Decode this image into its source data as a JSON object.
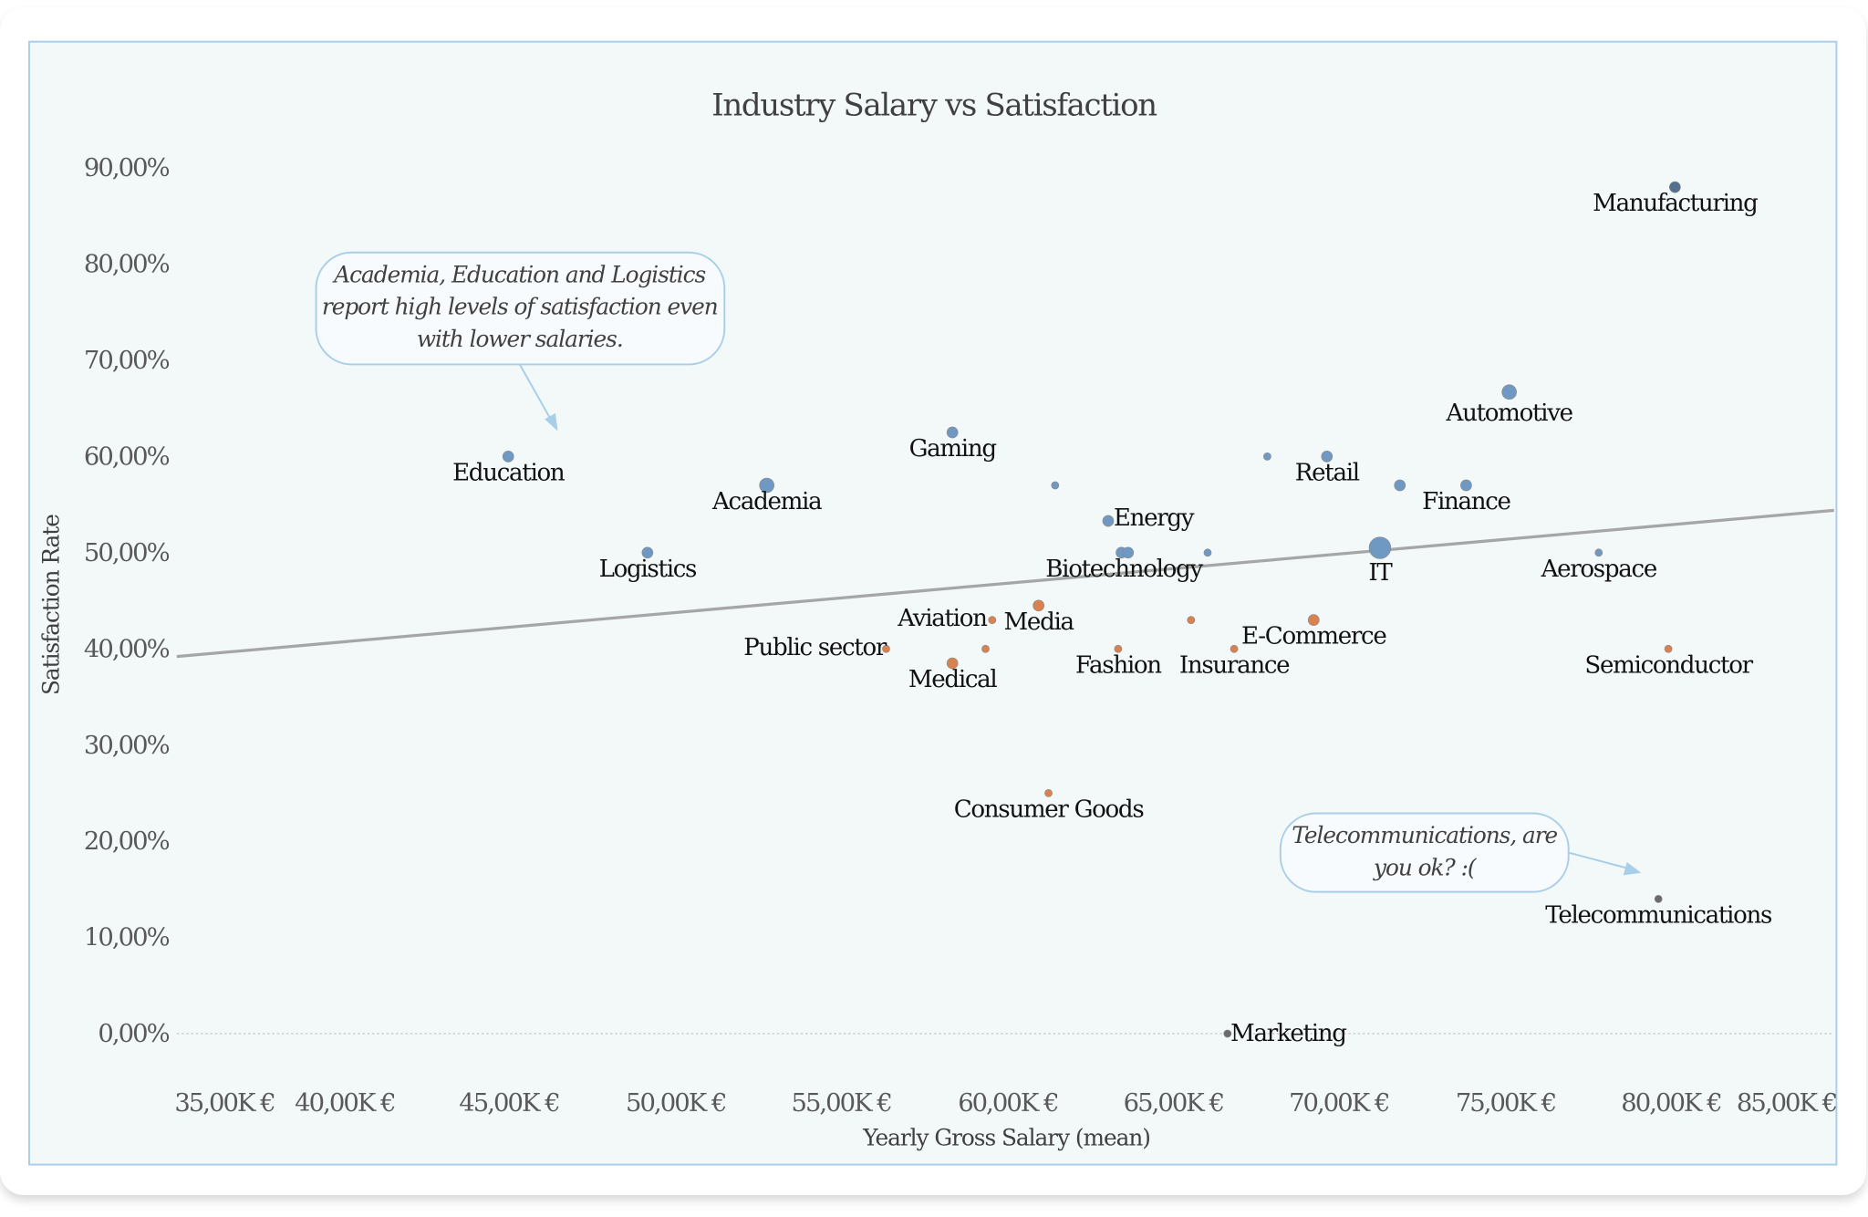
{
  "chart_data": {
    "type": "scatter",
    "title": "Industry Salary vs Satisfaction",
    "xlabel": "Yearly Gross Salary (mean)",
    "ylabel": "Satisfaction Rate",
    "xlim": [
      35000,
      85000
    ],
    "ylim": [
      0,
      0.9
    ],
    "x_ticks": [
      "35,00K €",
      "40,00K €",
      "45,00K €",
      "50,00K €",
      "55,00K €",
      "60,00K €",
      "65,00K €",
      "70,00K €",
      "75,00K €",
      "80,00K €",
      "85,00K €"
    ],
    "y_ticks": [
      "0,00%",
      "10,00%",
      "20,00%",
      "30,00%",
      "40,00%",
      "50,00%",
      "60,00%",
      "70,00%",
      "80,00%",
      "90,00%"
    ],
    "grid": false,
    "colors": {
      "high": "#6f98c3",
      "low": "#d9824f",
      "dark": "#6b6b6b",
      "top": "#52708f",
      "trendline": "#a6a6a6",
      "plot_bg": "#f3f8f9",
      "plot_border": "#a9cfe8"
    },
    "points": [
      {
        "label": "Education",
        "x": 45000,
        "y": 0.6,
        "size": 2,
        "color": "high"
      },
      {
        "label": "Academia",
        "x": 52800,
        "y": 0.57,
        "size": 3,
        "color": "high"
      },
      {
        "label": "Logistics",
        "x": 49200,
        "y": 0.5,
        "size": 2,
        "color": "high"
      },
      {
        "label": "Gaming",
        "x": 58400,
        "y": 0.625,
        "size": 2,
        "color": "high"
      },
      {
        "label": "",
        "x": 61500,
        "y": 0.57,
        "size": 1,
        "color": "high"
      },
      {
        "label": "Energy",
        "x": 63100,
        "y": 0.533,
        "size": 2,
        "color": "high"
      },
      {
        "label": "Biotechnology",
        "x": 63500,
        "y": 0.5,
        "size": 2,
        "color": "high"
      },
      {
        "label": "",
        "x": 63700,
        "y": 0.5,
        "size": 2,
        "color": "high"
      },
      {
        "label": "",
        "x": 66100,
        "y": 0.5,
        "size": 1,
        "color": "high"
      },
      {
        "label": "",
        "x": 67900,
        "y": 0.6,
        "size": 1,
        "color": "high"
      },
      {
        "label": "Retail",
        "x": 69700,
        "y": 0.6,
        "size": 2,
        "color": "high"
      },
      {
        "label": "",
        "x": 71900,
        "y": 0.57,
        "size": 2,
        "color": "high"
      },
      {
        "label": "Finance",
        "x": 73900,
        "y": 0.57,
        "size": 2,
        "color": "high"
      },
      {
        "label": "Automotive",
        "x": 75200,
        "y": 0.667,
        "size": 3,
        "color": "high"
      },
      {
        "label": "IT",
        "x": 71300,
        "y": 0.505,
        "size": 5,
        "color": "high"
      },
      {
        "label": "Aerospace",
        "x": 77900,
        "y": 0.5,
        "size": 1,
        "color": "high"
      },
      {
        "label": "Manufacturing",
        "x": 80200,
        "y": 0.88,
        "size": 2,
        "color": "top"
      },
      {
        "label": "Semiconductor",
        "x": 80000,
        "y": 0.4,
        "size": 1,
        "color": "low"
      },
      {
        "label": "Telecommunications",
        "x": 79700,
        "y": 0.14,
        "size": 1,
        "color": "dark"
      },
      {
        "label": "Marketing",
        "x": 66700,
        "y": 0.0,
        "size": 1,
        "color": "dark"
      },
      {
        "label": "Consumer Goods",
        "x": 61300,
        "y": 0.25,
        "size": 1,
        "color": "low"
      },
      {
        "label": "Aviation",
        "x": 59600,
        "y": 0.43,
        "size": 1,
        "color": "low"
      },
      {
        "label": "Media",
        "x": 61000,
        "y": 0.445,
        "size": 2,
        "color": "low"
      },
      {
        "label": "Public sector",
        "x": 56400,
        "y": 0.4,
        "size": 1,
        "color": "low"
      },
      {
        "label": "",
        "x": 59400,
        "y": 0.4,
        "size": 1,
        "color": "low"
      },
      {
        "label": "Medical",
        "x": 58400,
        "y": 0.385,
        "size": 2,
        "color": "low"
      },
      {
        "label": "Fashion",
        "x": 63400,
        "y": 0.4,
        "size": 1,
        "color": "low"
      },
      {
        "label": "",
        "x": 65600,
        "y": 0.43,
        "size": 1,
        "color": "low"
      },
      {
        "label": "Insurance",
        "x": 66900,
        "y": 0.4,
        "size": 1,
        "color": "low"
      },
      {
        "label": "E-Commerce",
        "x": 69300,
        "y": 0.43,
        "size": 2,
        "color": "low"
      }
    ],
    "trendline": {
      "x": [
        35000,
        85000
      ],
      "y": [
        0.392,
        0.544
      ]
    },
    "annotations": [
      {
        "text_lines": [
          "Academia, Education and Logistics",
          "report high levels of satisfaction even",
          "with lower salaries."
        ]
      },
      {
        "text_lines": [
          "Telecommunications, are",
          "you ok? :("
        ]
      }
    ]
  }
}
